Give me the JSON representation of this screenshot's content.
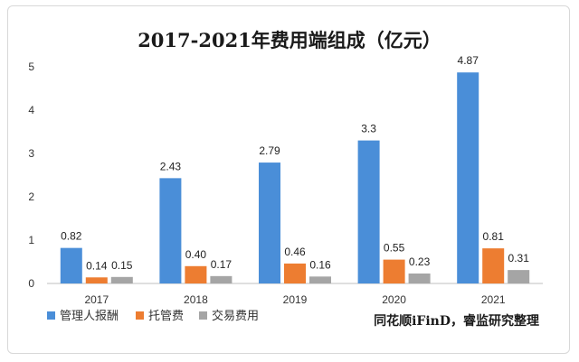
{
  "chart_data": {
    "type": "bar",
    "title": "2017-2021年费用端组成（亿元）",
    "categories": [
      "2017",
      "2018",
      "2019",
      "2020",
      "2021"
    ],
    "series": [
      {
        "name": "管理人报酬",
        "color": "#4a8ed8",
        "values": [
          0.82,
          2.43,
          2.79,
          3.3,
          4.87
        ],
        "labels": [
          "0.82",
          "2.43",
          "2.79",
          "3.3",
          "4.87"
        ]
      },
      {
        "name": "托管费",
        "color": "#ed7d31",
        "values": [
          0.14,
          0.4,
          0.46,
          0.55,
          0.81
        ],
        "labels": [
          "0.14",
          "0.40",
          "0.46",
          "0.55",
          "0.81"
        ]
      },
      {
        "name": "交易费用",
        "color": "#a5a5a5",
        "values": [
          0.15,
          0.17,
          0.16,
          0.23,
          0.31
        ],
        "labels": [
          "0.15",
          "0.17",
          "0.16",
          "0.23",
          "0.31"
        ]
      }
    ],
    "ylim": [
      0,
      5
    ],
    "yticks": [
      "0",
      "1",
      "2",
      "3",
      "4",
      "5"
    ],
    "grid": false,
    "legend_position": "bottom-left",
    "source_note": "同花顺iFinD，睿监研究整理"
  }
}
